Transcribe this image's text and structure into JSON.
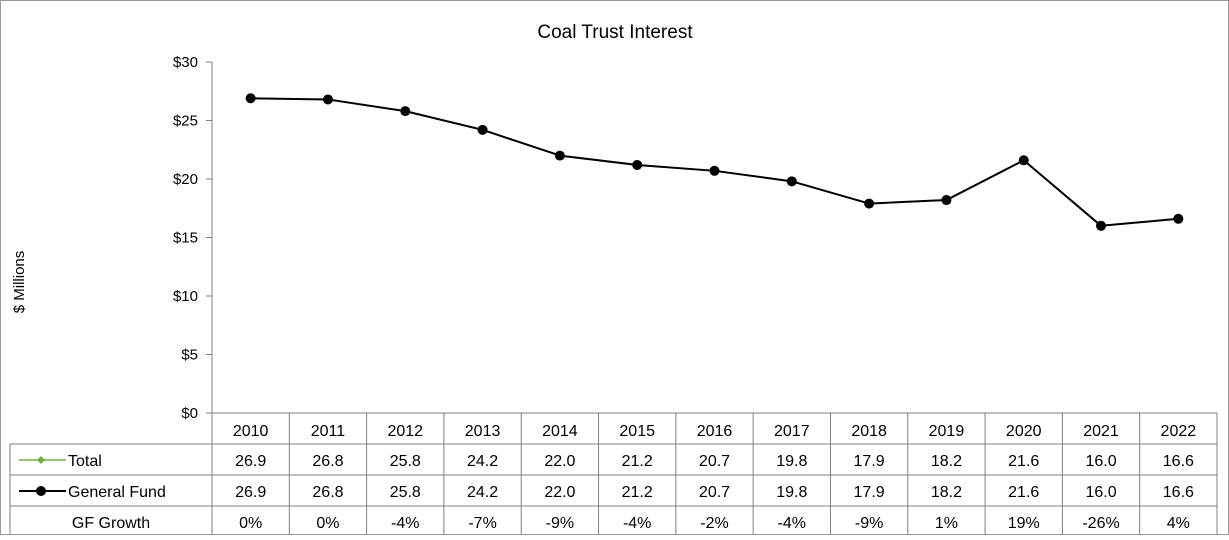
{
  "chart_data": {
    "type": "line",
    "title": "Coal Trust Interest",
    "ylabel": "$ Millions",
    "xlabel": "",
    "ylim": [
      0,
      30
    ],
    "y_ticks": [
      "$0",
      "$5",
      "$10",
      "$15",
      "$20",
      "$25",
      "$30"
    ],
    "y_tick_values": [
      0,
      5,
      10,
      15,
      20,
      25,
      30
    ],
    "grid": false,
    "legend": "data-table",
    "categories": [
      "2010",
      "2011",
      "2012",
      "2013",
      "2014",
      "2015",
      "2016",
      "2017",
      "2018",
      "2019",
      "2020",
      "2021",
      "2022"
    ],
    "series": [
      {
        "name": "Total",
        "color": "#70AD47",
        "marker": "diamond",
        "values": [
          26.9,
          26.8,
          25.8,
          24.2,
          22.0,
          21.2,
          20.7,
          19.8,
          17.9,
          18.2,
          21.6,
          16.0,
          16.6
        ],
        "labels": [
          "26.9",
          "26.8",
          "25.8",
          "24.2",
          "22.0",
          "21.2",
          "20.7",
          "19.8",
          "17.9",
          "18.2",
          "21.6",
          "16.0",
          "16.6"
        ]
      },
      {
        "name": "General Fund",
        "color": "#000000",
        "marker": "circle",
        "values": [
          26.9,
          26.8,
          25.8,
          24.2,
          22.0,
          21.2,
          20.7,
          19.8,
          17.9,
          18.2,
          21.6,
          16.0,
          16.6
        ],
        "labels": [
          "26.9",
          "26.8",
          "25.8",
          "24.2",
          "22.0",
          "21.2",
          "20.7",
          "19.8",
          "17.9",
          "18.2",
          "21.6",
          "16.0",
          "16.6"
        ]
      }
    ],
    "table_rows": [
      {
        "name": "GF Growth",
        "values": [
          "0%",
          "0%",
          "-4%",
          "-7%",
          "-9%",
          "-4%",
          "-2%",
          "-4%",
          "-9%",
          "1%",
          "19%",
          "-26%",
          "4%"
        ]
      }
    ]
  }
}
